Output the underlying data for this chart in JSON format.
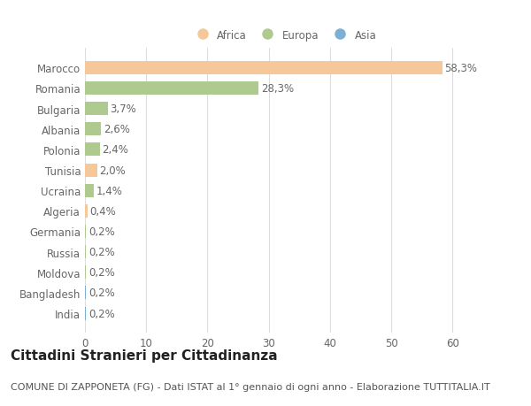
{
  "countries": [
    "Marocco",
    "Romania",
    "Bulgaria",
    "Albania",
    "Polonia",
    "Tunisia",
    "Ucraina",
    "Algeria",
    "Germania",
    "Russia",
    "Moldova",
    "Bangladesh",
    "India"
  ],
  "values": [
    58.3,
    28.3,
    3.7,
    2.6,
    2.4,
    2.0,
    1.4,
    0.4,
    0.2,
    0.2,
    0.2,
    0.2,
    0.2
  ],
  "labels": [
    "58,3%",
    "28,3%",
    "3,7%",
    "2,6%",
    "2,4%",
    "2,0%",
    "1,4%",
    "0,4%",
    "0,2%",
    "0,2%",
    "0,2%",
    "0,2%",
    "0,2%"
  ],
  "colors": [
    "#F5C799",
    "#AECA8E",
    "#AECA8E",
    "#AECA8E",
    "#AECA8E",
    "#F5C799",
    "#AECA8E",
    "#F5C799",
    "#AECA8E",
    "#AECA8E",
    "#AECA8E",
    "#7BAFD4",
    "#7BAFD4"
  ],
  "legend_labels": [
    "Africa",
    "Europa",
    "Asia"
  ],
  "legend_colors": [
    "#F5C799",
    "#AECA8E",
    "#7BAFD4"
  ],
  "xlim": [
    0,
    65
  ],
  "xticks": [
    0,
    10,
    20,
    30,
    40,
    50,
    60
  ],
  "title": "Cittadini Stranieri per Cittadinanza",
  "subtitle": "COMUNE DI ZAPPONETA (FG) - Dati ISTAT al 1° gennaio di ogni anno - Elaborazione TUTTITALIA.IT",
  "background_color": "#ffffff",
  "grid_color": "#dddddd",
  "bar_height": 0.65,
  "title_fontsize": 11,
  "subtitle_fontsize": 8,
  "label_fontsize": 8.5,
  "tick_fontsize": 8.5
}
